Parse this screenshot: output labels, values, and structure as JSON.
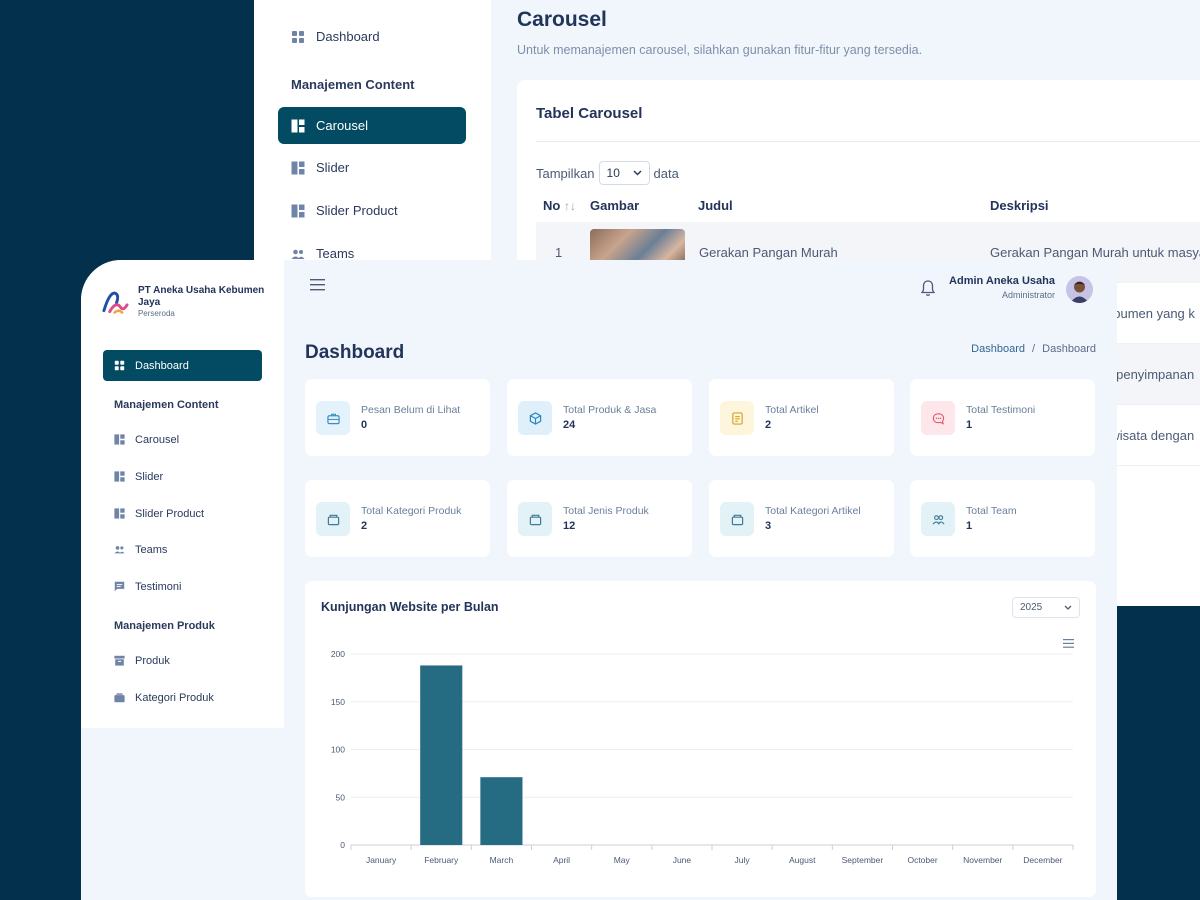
{
  "back_window": {
    "sidebar": {
      "items": [
        {
          "label": "Dashboard",
          "icon": "dashboard-icon"
        },
        {
          "label": "Carousel",
          "icon": "layout-icon",
          "active": true
        },
        {
          "label": "Slider",
          "icon": "layout-icon"
        },
        {
          "label": "Slider Product",
          "icon": "layout-icon"
        },
        {
          "label": "Teams",
          "icon": "users-icon"
        }
      ],
      "section_content": "Manajemen Content"
    },
    "title": "Carousel",
    "subtitle": "Untuk memanajemen carousel, silahkan gunakan fitur-fitur yang tersedia.",
    "table": {
      "title": "Tabel Carousel",
      "show_prefix": "Tampilkan",
      "show_value": "10",
      "show_suffix": "data",
      "columns": [
        "No",
        "Gambar",
        "Judul",
        "Deskripsi"
      ],
      "sort_icon": "↑↓",
      "rows": [
        {
          "no": "1",
          "judul": "Gerakan Pangan Murah",
          "deskripsi": "Gerakan Pangan Murah untuk masyarakat"
        },
        {
          "deskripsi": "ebumen yang k"
        },
        {
          "deskripsi": "k penyimpanan"
        },
        {
          "deskripsi": "rwisata dengan"
        }
      ]
    }
  },
  "front_window": {
    "brand": {
      "name": "PT Aneka Usaha Kebumen Jaya",
      "tagline": "Perseroda"
    },
    "sidebar": {
      "active": {
        "label": "Dashboard",
        "icon": "dashboard-icon"
      },
      "section_content": "Manajemen Content",
      "content_items": [
        {
          "label": "Carousel",
          "icon": "layout-icon"
        },
        {
          "label": "Slider",
          "icon": "layout-icon"
        },
        {
          "label": "Slider Product",
          "icon": "layout-icon"
        },
        {
          "label": "Teams",
          "icon": "users-icon"
        },
        {
          "label": "Testimoni",
          "icon": "message-icon"
        }
      ],
      "section_produk": "Manajemen Produk",
      "produk_items": [
        {
          "label": "Produk",
          "icon": "archive-icon"
        },
        {
          "label": "Kategori Produk",
          "icon": "box-icon"
        }
      ]
    },
    "header": {
      "user_name": "Admin Aneka Usaha",
      "user_role": "Administrator"
    },
    "page_title": "Dashboard",
    "breadcrumb": {
      "link": "Dashboard",
      "separator": "/",
      "current": "Dashboard"
    },
    "stats": [
      {
        "label": "Pesan Belum di Lihat",
        "value": "0",
        "icon": "briefcase-icon",
        "bg": "#e4f3fb",
        "fg": "#3a8fc0"
      },
      {
        "label": "Total Produk & Jasa",
        "value": "24",
        "icon": "cube-icon",
        "bg": "#dff0fa",
        "fg": "#2b86c2"
      },
      {
        "label": "Total Artikel",
        "value": "2",
        "icon": "document-icon",
        "bg": "#fdf6dc",
        "fg": "#d2a728"
      },
      {
        "label": "Total Testimoni",
        "value": "1",
        "icon": "chat-icon",
        "bg": "#fde7ea",
        "fg": "#e25a6e"
      },
      {
        "label": "Total Kategori Produk",
        "value": "2",
        "icon": "box-icon",
        "bg": "#e3f2f7",
        "fg": "#3c7c96"
      },
      {
        "label": "Total Jenis Produk",
        "value": "12",
        "icon": "box-icon",
        "bg": "#e3f2f7",
        "fg": "#3c7c96"
      },
      {
        "label": "Total Kategori Artikel",
        "value": "3",
        "icon": "box-icon",
        "bg": "#e3f2f7",
        "fg": "#3c7c96"
      },
      {
        "label": "Total Team",
        "value": "1",
        "icon": "team-icon",
        "bg": "#e3f2f7",
        "fg": "#3c7c96"
      }
    ],
    "chart_section": {
      "title": "Kunjungan Website per Bulan",
      "year": "2025"
    }
  },
  "colors": {
    "accent": "#034b62",
    "bar": "#256b81",
    "background": "#03314d"
  },
  "chart_data": {
    "type": "bar",
    "title": "Kunjungan Website per Bulan",
    "categories": [
      "January",
      "February",
      "March",
      "April",
      "May",
      "June",
      "July",
      "August",
      "September",
      "October",
      "November",
      "December"
    ],
    "values": [
      0,
      188,
      71,
      0,
      0,
      0,
      0,
      0,
      0,
      0,
      0,
      0
    ],
    "ylim": [
      0,
      200
    ],
    "yticks": [
      0,
      50,
      100,
      150,
      200
    ],
    "grid": true,
    "legend": "none"
  }
}
